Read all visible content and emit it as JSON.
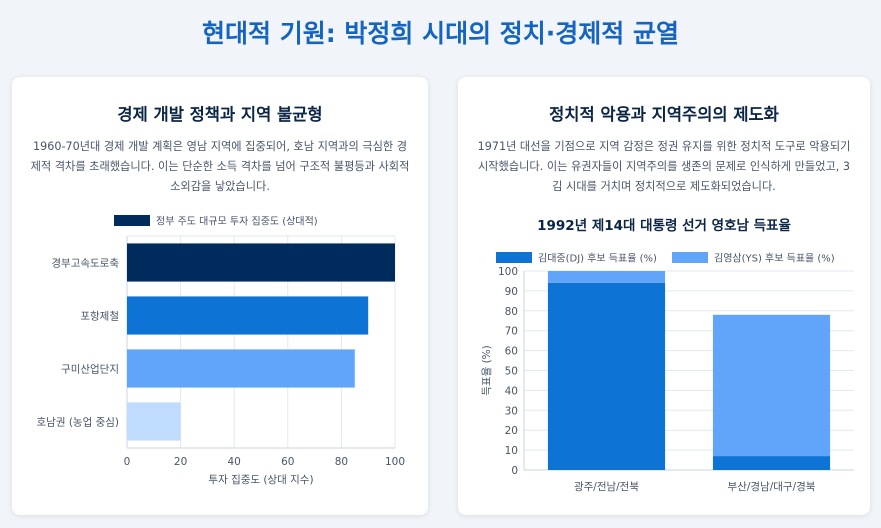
{
  "page_title": "현대적 기원: 박정희 시대의 정치·경제적 균열",
  "left_card": {
    "title": "경제 개발 정책과 지역 불균형",
    "description": "1960-70년대 경제 개발 계획은 영남 지역에 집중되어, 호남 지역과의 극심한 경제적 격차를 초래했습니다. 이는 단순한 소득 격차를 넘어 구조적 불평등과 사회적 소외감을 낳았습니다."
  },
  "right_card": {
    "title": "정치적 악용과 지역주의의 제도화",
    "description": "1971년 대선을 기점으로 지역 감정은 정권 유지를 위한 정치적 도구로 악용되기 시작했습니다. 이는 유권자들이 지역주의를 생존의 문제로 인식하게 만들었고, 3김 시대를 거치며 정치적으로 제도화되었습니다."
  },
  "chart_data": [
    {
      "type": "bar",
      "orientation": "horizontal",
      "categories": [
        "경부고속도로축",
        "포항제철",
        "구미산업단지",
        "호남권 (농업 중심)"
      ],
      "series": [
        {
          "name": "정부 주도 대규모 투자 집중도 (상대적)",
          "values": [
            100,
            90,
            85,
            20
          ]
        }
      ],
      "bar_colors": [
        "#002b5c",
        "#0d74d6",
        "#60a5fa",
        "#bfdbfe"
      ],
      "title": "",
      "xlabel": "투자 집중도 (상대 지수)",
      "ylabel": "",
      "xlim": [
        0,
        100
      ],
      "xticks": [
        0,
        20,
        40,
        60,
        80,
        100
      ],
      "grid": true,
      "legend": "top"
    },
    {
      "type": "bar",
      "stacked": true,
      "categories": [
        "광주/전남/전북",
        "부산/경남/대구/경북"
      ],
      "series": [
        {
          "name": "김대중(DJ) 후보 득표율 (%)",
          "color": "#0d74d6",
          "values": [
            94,
            7
          ]
        },
        {
          "name": "김영삼(YS) 후보 득표율 (%)",
          "color": "#60a5fa",
          "values": [
            6,
            71
          ]
        }
      ],
      "title": "1992년 제14대 대통령 선거 영호남 득표율",
      "xlabel": "",
      "ylabel": "득표율 (%)",
      "ylim": [
        0,
        100
      ],
      "yticks": [
        0,
        10,
        20,
        30,
        40,
        50,
        60,
        70,
        80,
        90,
        100
      ],
      "grid": true,
      "legend": "top"
    }
  ]
}
